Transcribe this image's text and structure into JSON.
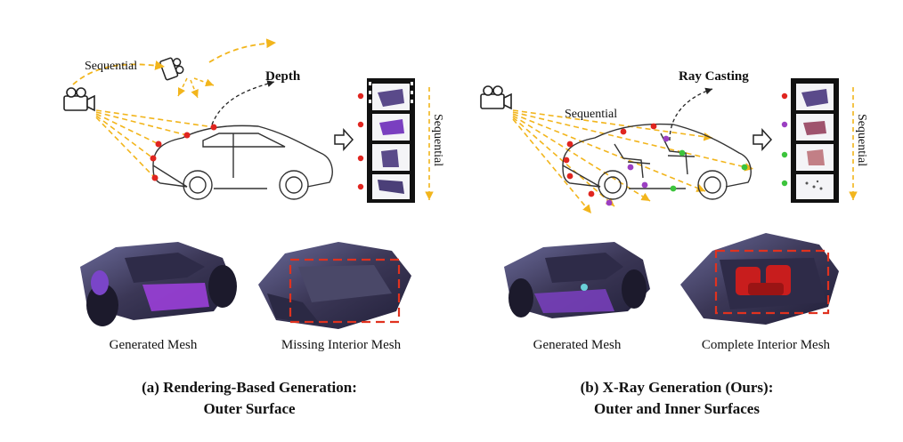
{
  "left_panel": {
    "sequential_label": "Sequential",
    "depth_label": "Depth",
    "strip_label": "Sequential",
    "mesh_label_1": "Generated Mesh",
    "mesh_label_2": "Missing Interior Mesh",
    "caption_line1": "(a) Rendering-Based Generation:",
    "caption_line2": "Outer Surface"
  },
  "right_panel": {
    "sequential_label": "Sequential",
    "raycast_label": "Ray Casting",
    "strip_label": "Sequential",
    "mesh_label_1": "Generated Mesh",
    "mesh_label_2": "Complete Interior Mesh",
    "caption_line1": "(b) X-Ray Generation (Ours):",
    "caption_line2": "Outer and Inner Surfaces"
  },
  "colors": {
    "ray": "#f2b51c",
    "hit_outer": "#e0251f",
    "hit_inner_purple": "#9b3fc2",
    "hit_inner_green": "#3cc43c",
    "highlight_box": "#e0321f",
    "mesh_dark": "#3b3756",
    "mesh_purple": "#8a2fd0",
    "interior_red": "#c81d1d"
  }
}
